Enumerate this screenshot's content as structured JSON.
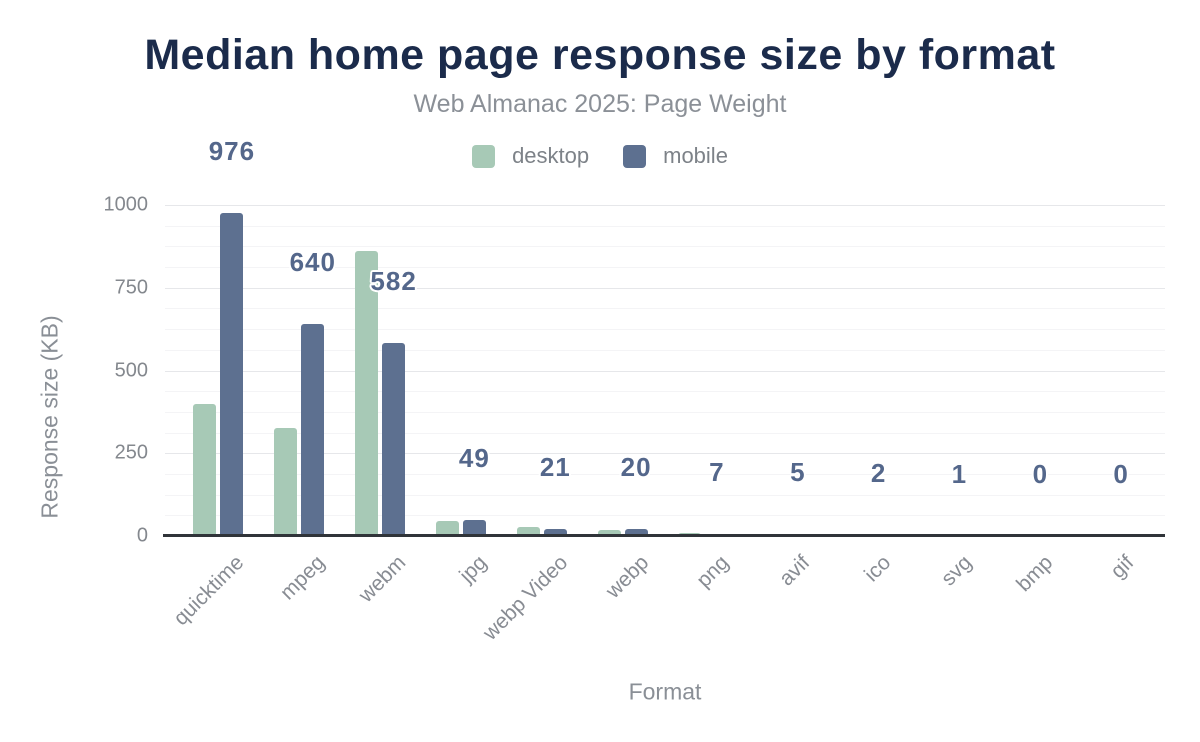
{
  "chart": {
    "title": "Median home page response size by format",
    "subtitle": "Web Almanac 2025: Page Weight"
  },
  "chart_data": {
    "type": "bar",
    "title": "Median home page response size by format",
    "subtitle": "Web Almanac 2025: Page Weight",
    "xlabel": "Format",
    "ylabel": "Response size (KB)",
    "categories": [
      "quicktime",
      "mpeg",
      "webm",
      "jpg",
      "webp Video",
      "webp",
      "png",
      "avif",
      "ico",
      "svg",
      "bmp",
      "gif"
    ],
    "series": [
      {
        "name": "desktop",
        "color": "#a7c9b6",
        "values": [
          400,
          325,
          860,
          45,
          28,
          17,
          8,
          7,
          2,
          1,
          0,
          0
        ]
      },
      {
        "name": "mobile",
        "color": "#5d7090",
        "values": [
          976,
          640,
          582,
          49,
          21,
          20,
          7,
          5,
          2,
          1,
          0,
          0
        ]
      }
    ],
    "data_labels": {
      "series": "mobile",
      "values": [
        "976",
        "640",
        "582",
        "49",
        "21",
        "20",
        "7",
        "5",
        "2",
        "1",
        "0",
        "0"
      ]
    },
    "yticks": [
      "0",
      "250",
      "500",
      "750",
      "1000"
    ],
    "ylim": [
      0,
      1050
    ],
    "grid": "major and minor horizontal gridlines",
    "legend_position": "top-center",
    "colors": {
      "title": "#1b2b4b",
      "subtitle": "#8b9097",
      "axis_text": "#84888e",
      "data_label": "#54678b",
      "axis_line": "#303439"
    }
  }
}
